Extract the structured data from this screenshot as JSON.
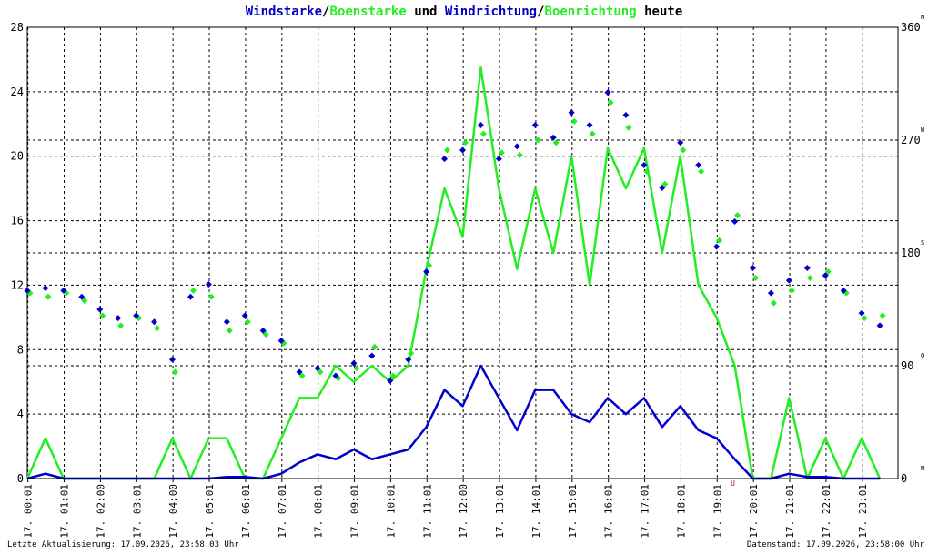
{
  "chart_data": {
    "type": "line",
    "title_joins": [
      "/",
      " und ",
      "/",
      " heute"
    ],
    "x": [
      0,
      0.5,
      1,
      1.5,
      2,
      2.5,
      3,
      3.5,
      4,
      4.5,
      5,
      5.5,
      6,
      6.5,
      7,
      7.5,
      8,
      8.5,
      9,
      9.5,
      10,
      10.5,
      11,
      11.5,
      12,
      12.5,
      13,
      13.5,
      14,
      14.5,
      15,
      15.5,
      16,
      16.5,
      17,
      17.5,
      18,
      18.5,
      19,
      19.5,
      20,
      20.5,
      21,
      21.5,
      22,
      22.5,
      23,
      23.5
    ],
    "series": [
      {
        "name": "Windstarke",
        "color": "#0000cc",
        "type": "line",
        "values": [
          0,
          0.3,
          0,
          0,
          0,
          0,
          0,
          0,
          0,
          0,
          0,
          0.1,
          0.1,
          0,
          0.3,
          1,
          1.5,
          1.2,
          1.8,
          1.2,
          1.5,
          1.8,
          3.2,
          5.5,
          4.5,
          7,
          5,
          3,
          5.5,
          5.5,
          4,
          3.5,
          5,
          4,
          5,
          3.2,
          4.5,
          3,
          2.5,
          1.2,
          0,
          0,
          0.3,
          0.1,
          0.1,
          0,
          0,
          0
        ]
      },
      {
        "name": "Boenstarke",
        "color": "#22ee22",
        "type": "line",
        "values": [
          0,
          2.5,
          0,
          0,
          0,
          0,
          0,
          0,
          2.5,
          0,
          2.5,
          2.5,
          0,
          0,
          2.5,
          5,
          5,
          7,
          6,
          7,
          6,
          7,
          13,
          18,
          15,
          25.5,
          18,
          13,
          18,
          14,
          20,
          12,
          20.5,
          18,
          20.5,
          14,
          20,
          12,
          10,
          7,
          0,
          0,
          5,
          0,
          2.5,
          0,
          2.5,
          0
        ]
      },
      {
        "name": "Windrichtung",
        "color": "#0000cc",
        "type": "scatter",
        "axis": "y2",
        "values": [
          150,
          152,
          150,
          145,
          135,
          128,
          130,
          125,
          95,
          145,
          155,
          125,
          130,
          118,
          110,
          85,
          88,
          82,
          92,
          98,
          78,
          95,
          165,
          255,
          262,
          282,
          255,
          265,
          282,
          272,
          292,
          282,
          308,
          290,
          250,
          232,
          268,
          250,
          185,
          205,
          168,
          148,
          158,
          168,
          162,
          150,
          132,
          122
        ]
      },
      {
        "name": "Boenrichtung",
        "color": "#22ee22",
        "type": "scatter",
        "axis": "y2",
        "values": [
          148,
          145,
          148,
          142,
          130,
          122,
          128,
          120,
          85,
          150,
          145,
          118,
          125,
          115,
          108,
          82,
          85,
          80,
          88,
          105,
          82,
          100,
          170,
          262,
          268,
          275,
          260,
          258,
          270,
          268,
          285,
          275,
          300,
          280,
          245,
          235,
          262,
          245,
          190,
          210,
          160,
          140,
          150,
          160,
          165,
          148,
          128,
          130
        ]
      }
    ],
    "xlim": [
      0,
      24
    ],
    "xticks": [
      {
        "value": 0.0167,
        "label": "17. 00:01"
      },
      {
        "value": 1.0167,
        "label": "17. 01:01"
      },
      {
        "value": 2.0167,
        "label": "17. 02:00"
      },
      {
        "value": 3.0167,
        "label": "17. 03:01"
      },
      {
        "value": 4.0167,
        "label": "17. 04:00"
      },
      {
        "value": 5.0167,
        "label": "17. 05:01"
      },
      {
        "value": 6.0167,
        "label": "17. 06:01"
      },
      {
        "value": 7.0167,
        "label": "17. 07:01"
      },
      {
        "value": 8.0167,
        "label": "17. 08:01"
      },
      {
        "value": 9.0167,
        "label": "17. 09:01"
      },
      {
        "value": 10.0167,
        "label": "17. 10:01"
      },
      {
        "value": 11.0167,
        "label": "17. 11:01"
      },
      {
        "value": 12.0167,
        "label": "17. 12:00"
      },
      {
        "value": 13.0167,
        "label": "17. 13:01"
      },
      {
        "value": 14.0167,
        "label": "17. 14:01"
      },
      {
        "value": 15.0167,
        "label": "17. 15:01"
      },
      {
        "value": 16.0167,
        "label": "17. 16:01"
      },
      {
        "value": 17.0167,
        "label": "17. 17:01"
      },
      {
        "value": 18.0167,
        "label": "17. 18:01"
      },
      {
        "value": 19.0167,
        "label": "17. 19:01"
      },
      {
        "value": 20.0167,
        "label": "17. 20:01"
      },
      {
        "value": 21.0167,
        "label": "17. 21:01"
      },
      {
        "value": 22.0167,
        "label": "17. 22:01"
      },
      {
        "value": 23.0167,
        "label": "17. 23:01"
      }
    ],
    "ylim": [
      0,
      28
    ],
    "yticks": [
      0,
      4,
      8,
      12,
      16,
      20,
      24,
      28
    ],
    "y2lim": [
      0,
      360
    ],
    "y2ticks": [
      0,
      90,
      180,
      270,
      360
    ],
    "y2tick_dirs": [
      "N",
      "O",
      "S",
      "W",
      "N"
    ],
    "grid": true,
    "annotations": [
      {
        "text": "U",
        "x": 19.45
      }
    ],
    "footer_left": "Letzte Aktualisierung: 17.09.2026, 23:58:03 Uhr",
    "footer_right": "Datenstand: 17.09.2026, 23:58:00 Uhr"
  }
}
